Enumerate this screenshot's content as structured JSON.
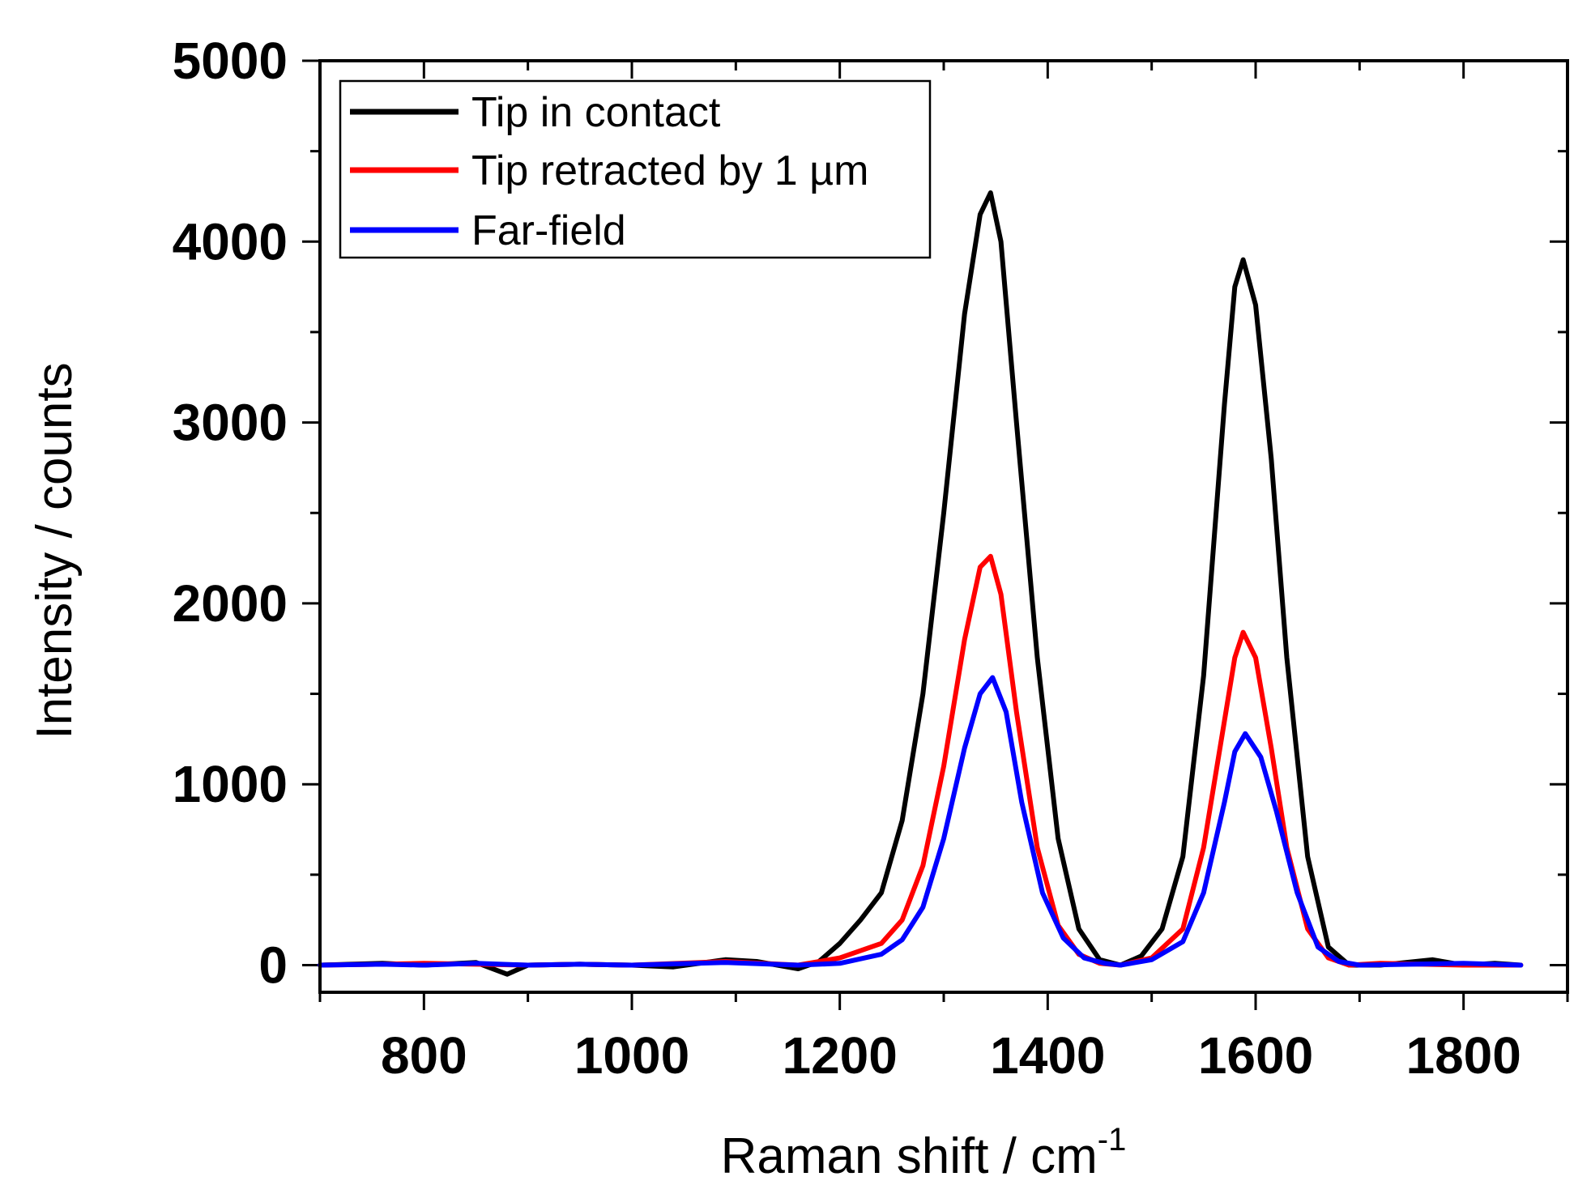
{
  "chart_data": {
    "type": "line",
    "title": "",
    "xlabel": "Raman shift / cm",
    "xlabel_superscript": "-1",
    "ylabel": "Intensity / counts",
    "xlim": [
      700,
      1900
    ],
    "ylim": [
      -150,
      5000
    ],
    "xticks": [
      800,
      1000,
      1200,
      1400,
      1600,
      1800
    ],
    "yticks": [
      0,
      1000,
      2000,
      3000,
      4000,
      5000
    ],
    "legend_position": "top-left",
    "series": [
      {
        "name": "Tip in contact",
        "color": "#000000",
        "x": [
          700,
          760,
          800,
          850,
          880,
          900,
          950,
          1000,
          1040,
          1090,
          1120,
          1160,
          1180,
          1200,
          1220,
          1240,
          1260,
          1280,
          1300,
          1320,
          1335,
          1345,
          1355,
          1370,
          1390,
          1410,
          1430,
          1450,
          1470,
          1490,
          1510,
          1530,
          1550,
          1570,
          1580,
          1588,
          1600,
          1615,
          1630,
          1650,
          1670,
          1690,
          1720,
          1770,
          1800,
          1830,
          1855
        ],
        "y": [
          0,
          10,
          0,
          15,
          -50,
          0,
          5,
          0,
          -10,
          30,
          20,
          -20,
          20,
          120,
          250,
          400,
          800,
          1500,
          2500,
          3600,
          4150,
          4270,
          4000,
          3000,
          1700,
          700,
          200,
          30,
          0,
          50,
          200,
          600,
          1600,
          3100,
          3750,
          3900,
          3650,
          2800,
          1700,
          600,
          100,
          0,
          0,
          30,
          0,
          10,
          0
        ]
      },
      {
        "name": "Tip retracted by 1 µm",
        "color": "#ff0000",
        "x": [
          700,
          760,
          800,
          850,
          900,
          950,
          1000,
          1090,
          1160,
          1200,
          1240,
          1260,
          1280,
          1300,
          1320,
          1335,
          1345,
          1355,
          1370,
          1390,
          1410,
          1430,
          1450,
          1470,
          1500,
          1530,
          1550,
          1570,
          1580,
          1588,
          1600,
          1615,
          1630,
          1650,
          1670,
          1690,
          1720,
          1800,
          1855
        ],
        "y": [
          0,
          5,
          10,
          5,
          0,
          5,
          0,
          20,
          0,
          40,
          120,
          250,
          550,
          1100,
          1800,
          2200,
          2260,
          2050,
          1400,
          650,
          220,
          60,
          10,
          0,
          40,
          200,
          650,
          1350,
          1700,
          1840,
          1700,
          1200,
          650,
          200,
          40,
          0,
          10,
          0,
          0
        ]
      },
      {
        "name": "Far-field",
        "color": "#0000ff",
        "x": [
          700,
          760,
          800,
          850,
          900,
          950,
          1000,
          1090,
          1160,
          1200,
          1240,
          1260,
          1280,
          1300,
          1320,
          1335,
          1347,
          1360,
          1375,
          1395,
          1415,
          1435,
          1455,
          1470,
          1500,
          1530,
          1550,
          1570,
          1580,
          1590,
          1605,
          1620,
          1640,
          1660,
          1680,
          1700,
          1800,
          1855
        ],
        "y": [
          0,
          5,
          0,
          10,
          0,
          5,
          0,
          15,
          0,
          10,
          60,
          140,
          320,
          700,
          1200,
          1500,
          1590,
          1400,
          900,
          400,
          150,
          40,
          10,
          0,
          30,
          130,
          400,
          900,
          1180,
          1280,
          1150,
          850,
          400,
          100,
          20,
          0,
          10,
          0
        ]
      }
    ]
  }
}
